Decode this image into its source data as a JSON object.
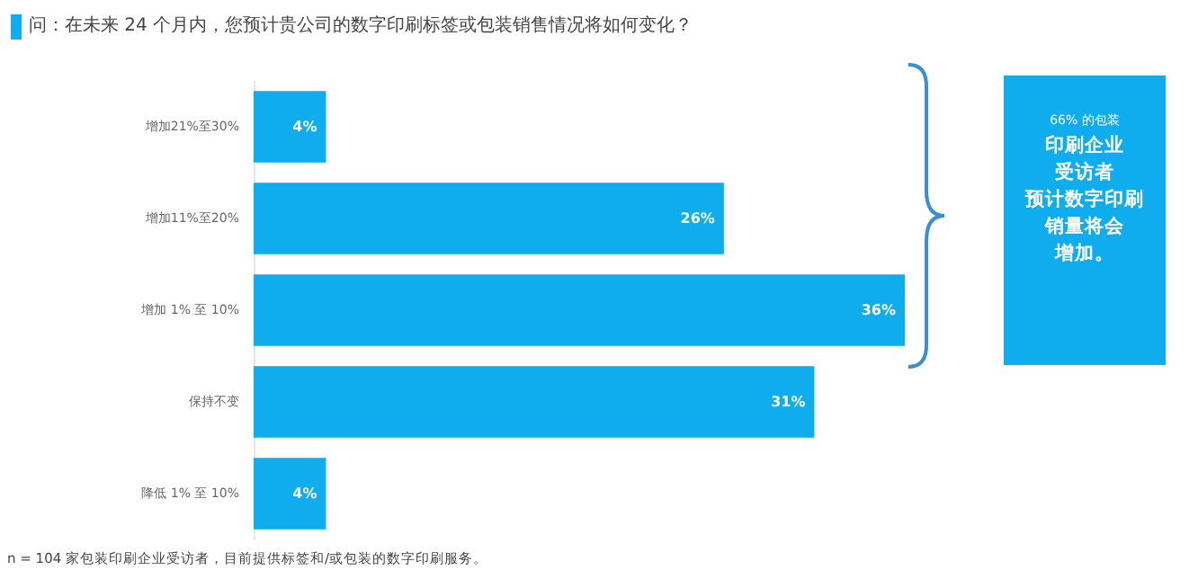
{
  "chart_data": {
    "type": "bar",
    "orientation": "horizontal",
    "title": "问：在未来 24 个月内，您预计贵公司的数字印刷标签或包装销售情况将如何变化？",
    "categories": [
      "增加21%至30%",
      "增加11%至20%",
      "增加 1% 至 10%",
      "保持不变",
      "降低 1% 至 10%"
    ],
    "values": [
      4,
      26,
      36,
      31,
      4
    ],
    "value_labels": [
      "4%",
      "26%",
      "36%",
      "31%",
      "4%"
    ],
    "color": "#0fadee",
    "annotations": [
      "66% 的包装",
      "印刷企业",
      "受访者",
      "预计数字印刷",
      "销量将会",
      "增加。",
      "n = 104 家包装印刷企业受访者，目前提供标签和/或包装的数字印刷服务。"
    ]
  }
}
